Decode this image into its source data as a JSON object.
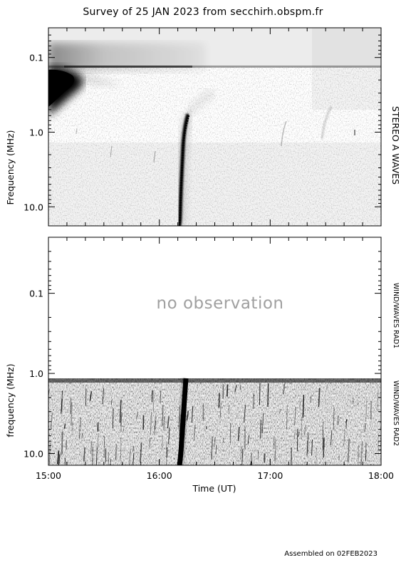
{
  "title": "Survey of 25 JAN 2023 from secchirh.obspm.fr",
  "footer": "Assembled on 02FEB2023",
  "chart_data": [
    {
      "type": "heatmap",
      "panel": "upper",
      "instrument_label": "STEREO A WAVES",
      "ylabel": "Frequency (MHz)",
      "y_scale": "log",
      "y_axis": "inverted (low frequency at top)",
      "ylim": [
        0.04,
        18
      ],
      "y_ticks": [
        "0.1",
        "1.0",
        "10.0"
      ],
      "x_shared": true,
      "features": [
        {
          "name": "type III burst",
          "t_start": "15:00",
          "t_peak": "15:05",
          "f_range_MHz": [
            0.15,
            0.5
          ]
        },
        {
          "name": "type III burst",
          "t_start": "16:08",
          "t_end": "16:20",
          "f_range_MHz": [
            0.6,
            15
          ]
        }
      ]
    },
    {
      "type": "heatmap",
      "panel": "lower",
      "instrument_labels": [
        "WIND/WAVES RAD1",
        "WIND/WAVES RAD2"
      ],
      "ylabel": "frequency (MHz)",
      "y_scale": "log",
      "ylim": [
        0.02,
        14
      ],
      "y_ticks": [
        "0.1",
        "1.0",
        "10.0"
      ],
      "annotation": "no observation",
      "xlabel": "Time (UT)",
      "x_ticks": [
        "15:00",
        "16:00",
        "17:00",
        "18:00"
      ],
      "xlim": [
        "15:00",
        "18:00"
      ],
      "features": [
        {
          "name": "type III burst",
          "t_start": "16:17",
          "t_end": "16:20",
          "f_range_MHz": [
            1.05,
            14
          ]
        }
      ]
    }
  ],
  "colors": {
    "background": "#ffffff",
    "axes": "#000000",
    "annotation": "#a0a0a0",
    "intensity": "#000000"
  }
}
